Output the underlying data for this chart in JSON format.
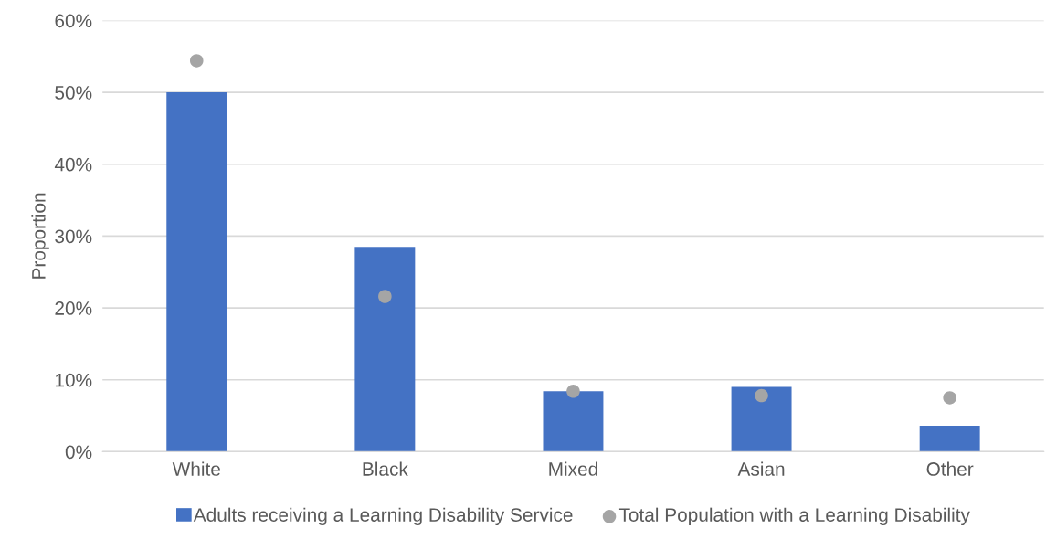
{
  "chart_data": {
    "type": "bar",
    "ylabel": "Proportion",
    "categories": [
      "White",
      "Black",
      "Mixed",
      "Asian",
      "Other"
    ],
    "series": [
      {
        "name": "Adults receiving a Learning Disability Service",
        "color": "#4472c4",
        "values": [
          50.0,
          28.5,
          8.4,
          9.0,
          3.6
        ]
      },
      {
        "name": "Total Population with a Learning Disability",
        "color": "#a5a5a5",
        "type": "scatter",
        "marker": "circle",
        "values": [
          54.4,
          21.6,
          8.4,
          7.8,
          7.5
        ]
      }
    ],
    "ylim": [
      0,
      60
    ],
    "yticks": [
      {
        "value": 0,
        "label": "0%"
      },
      {
        "value": 10,
        "label": "10%"
      },
      {
        "value": 20,
        "label": "20%"
      },
      {
        "value": 30,
        "label": "30%"
      },
      {
        "value": 40,
        "label": "40%"
      },
      {
        "value": 50,
        "label": "50%"
      },
      {
        "value": 60,
        "label": "60%"
      }
    ],
    "grid": "y",
    "legend": "bottom"
  }
}
